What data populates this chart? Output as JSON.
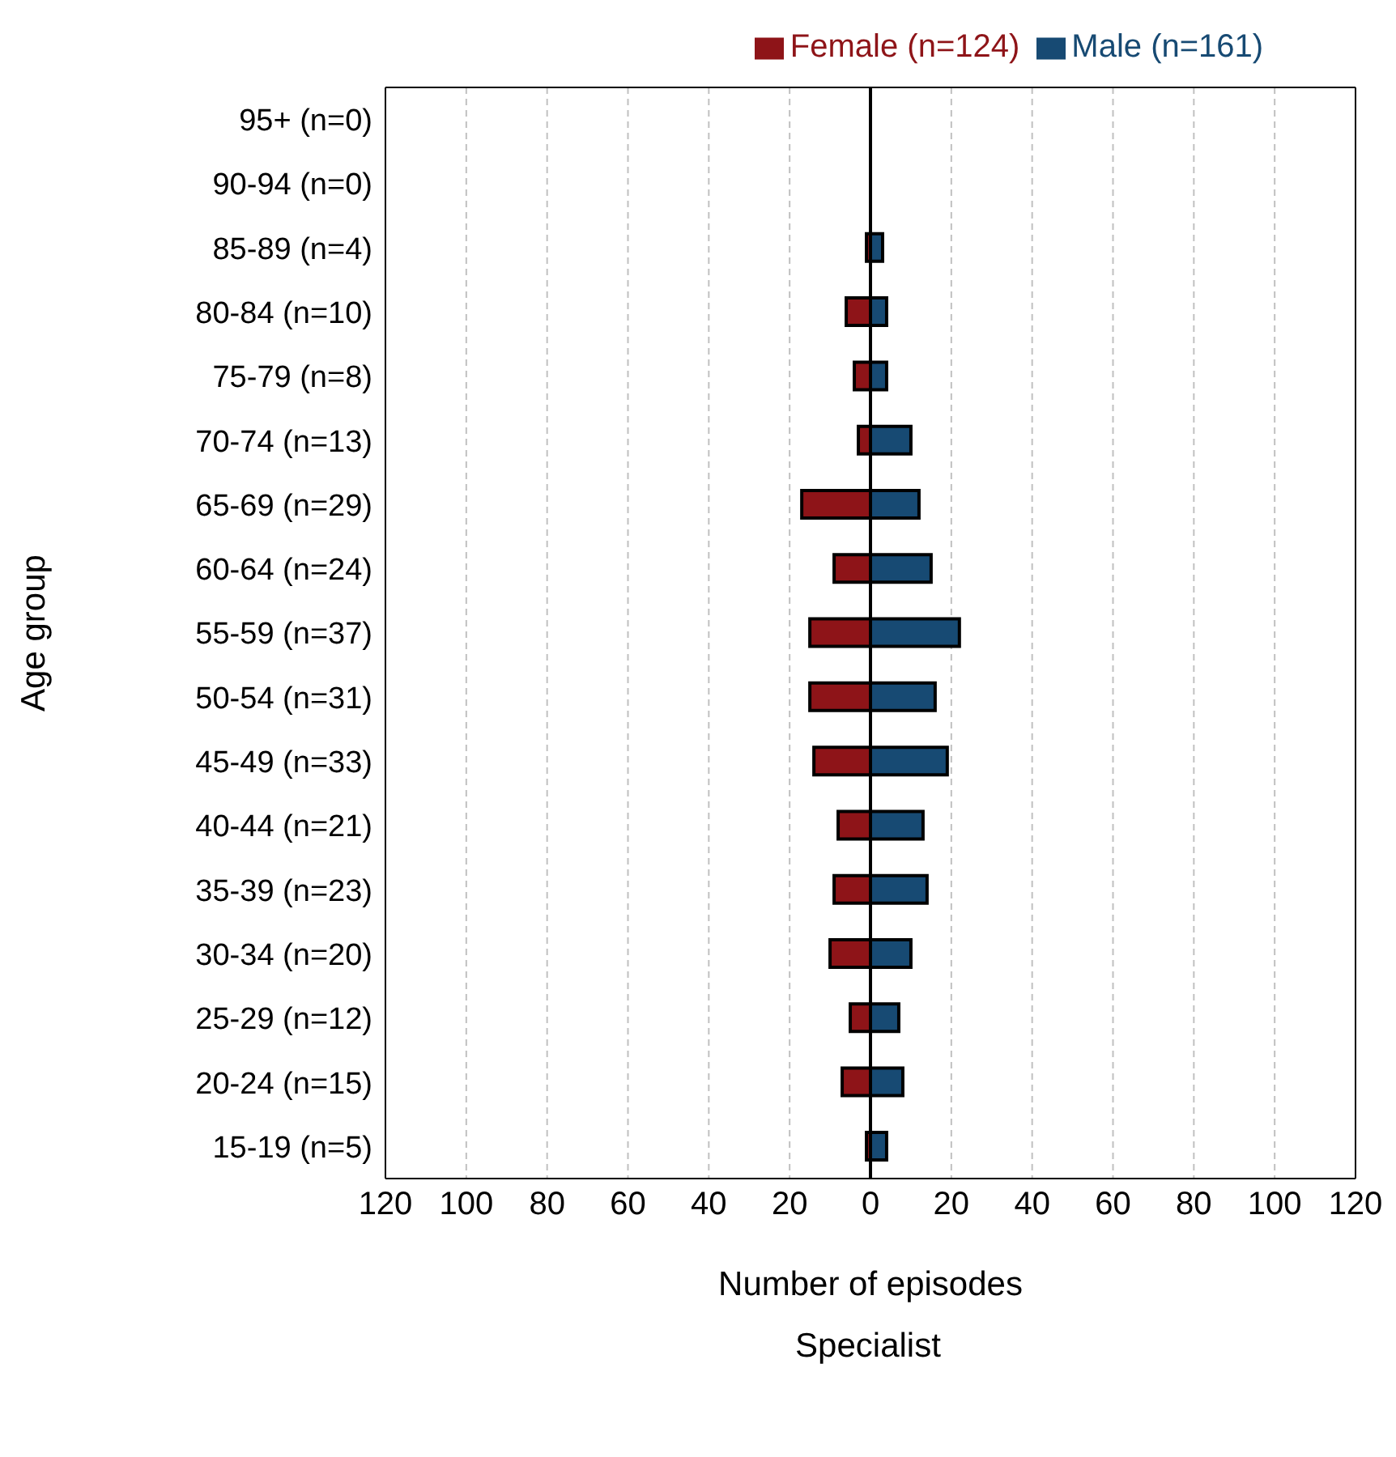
{
  "chart_data": {
    "type": "bar",
    "orientation": "horizontal",
    "stacked": true,
    "categories": [
      "95+ (n=0)",
      "90-94 (n=0)",
      "85-89 (n=4)",
      "80-84 (n=10)",
      "75-79 (n=8)",
      "70-74 (n=13)",
      "65-69 (n=29)",
      "60-64 (n=24)",
      "55-59 (n=37)",
      "50-54 (n=31)",
      "45-49 (n=33)",
      "40-44 (n=21)",
      "35-39 (n=23)",
      "30-34 (n=20)",
      "25-29 (n=12)",
      "20-24 (n=15)",
      "15-19 (n=5)"
    ],
    "series": [
      {
        "name": "Female (n=124)",
        "color": "#8e1418",
        "values": [
          0,
          0,
          -1,
          -6,
          -4,
          -3,
          -17,
          -9,
          -15,
          -15,
          -14,
          -8,
          -9,
          -10,
          -5,
          -7,
          -1
        ]
      },
      {
        "name": "Male (n=161)",
        "color": "#174a73",
        "values": [
          0,
          0,
          3,
          4,
          4,
          10,
          12,
          15,
          22,
          16,
          19,
          13,
          14,
          10,
          7,
          8,
          4
        ]
      }
    ],
    "xlabel": "Number of episodes",
    "ylabel": "Age group",
    "annotations": [
      "Specialist"
    ],
    "xlim": [
      -120,
      120
    ],
    "xticks": [
      {
        "value": -120,
        "label": "120"
      },
      {
        "value": -100,
        "label": "100"
      },
      {
        "value": -80,
        "label": "80"
      },
      {
        "value": -60,
        "label": "60"
      },
      {
        "value": -40,
        "label": "40"
      },
      {
        "value": -20,
        "label": "20"
      },
      0,
      20,
      40,
      60,
      80,
      100,
      120
    ],
    "ref_lines": [
      {
        "axis": "x",
        "value": 0,
        "color": "#000000"
      }
    ],
    "grid": "x",
    "legend": "top"
  }
}
